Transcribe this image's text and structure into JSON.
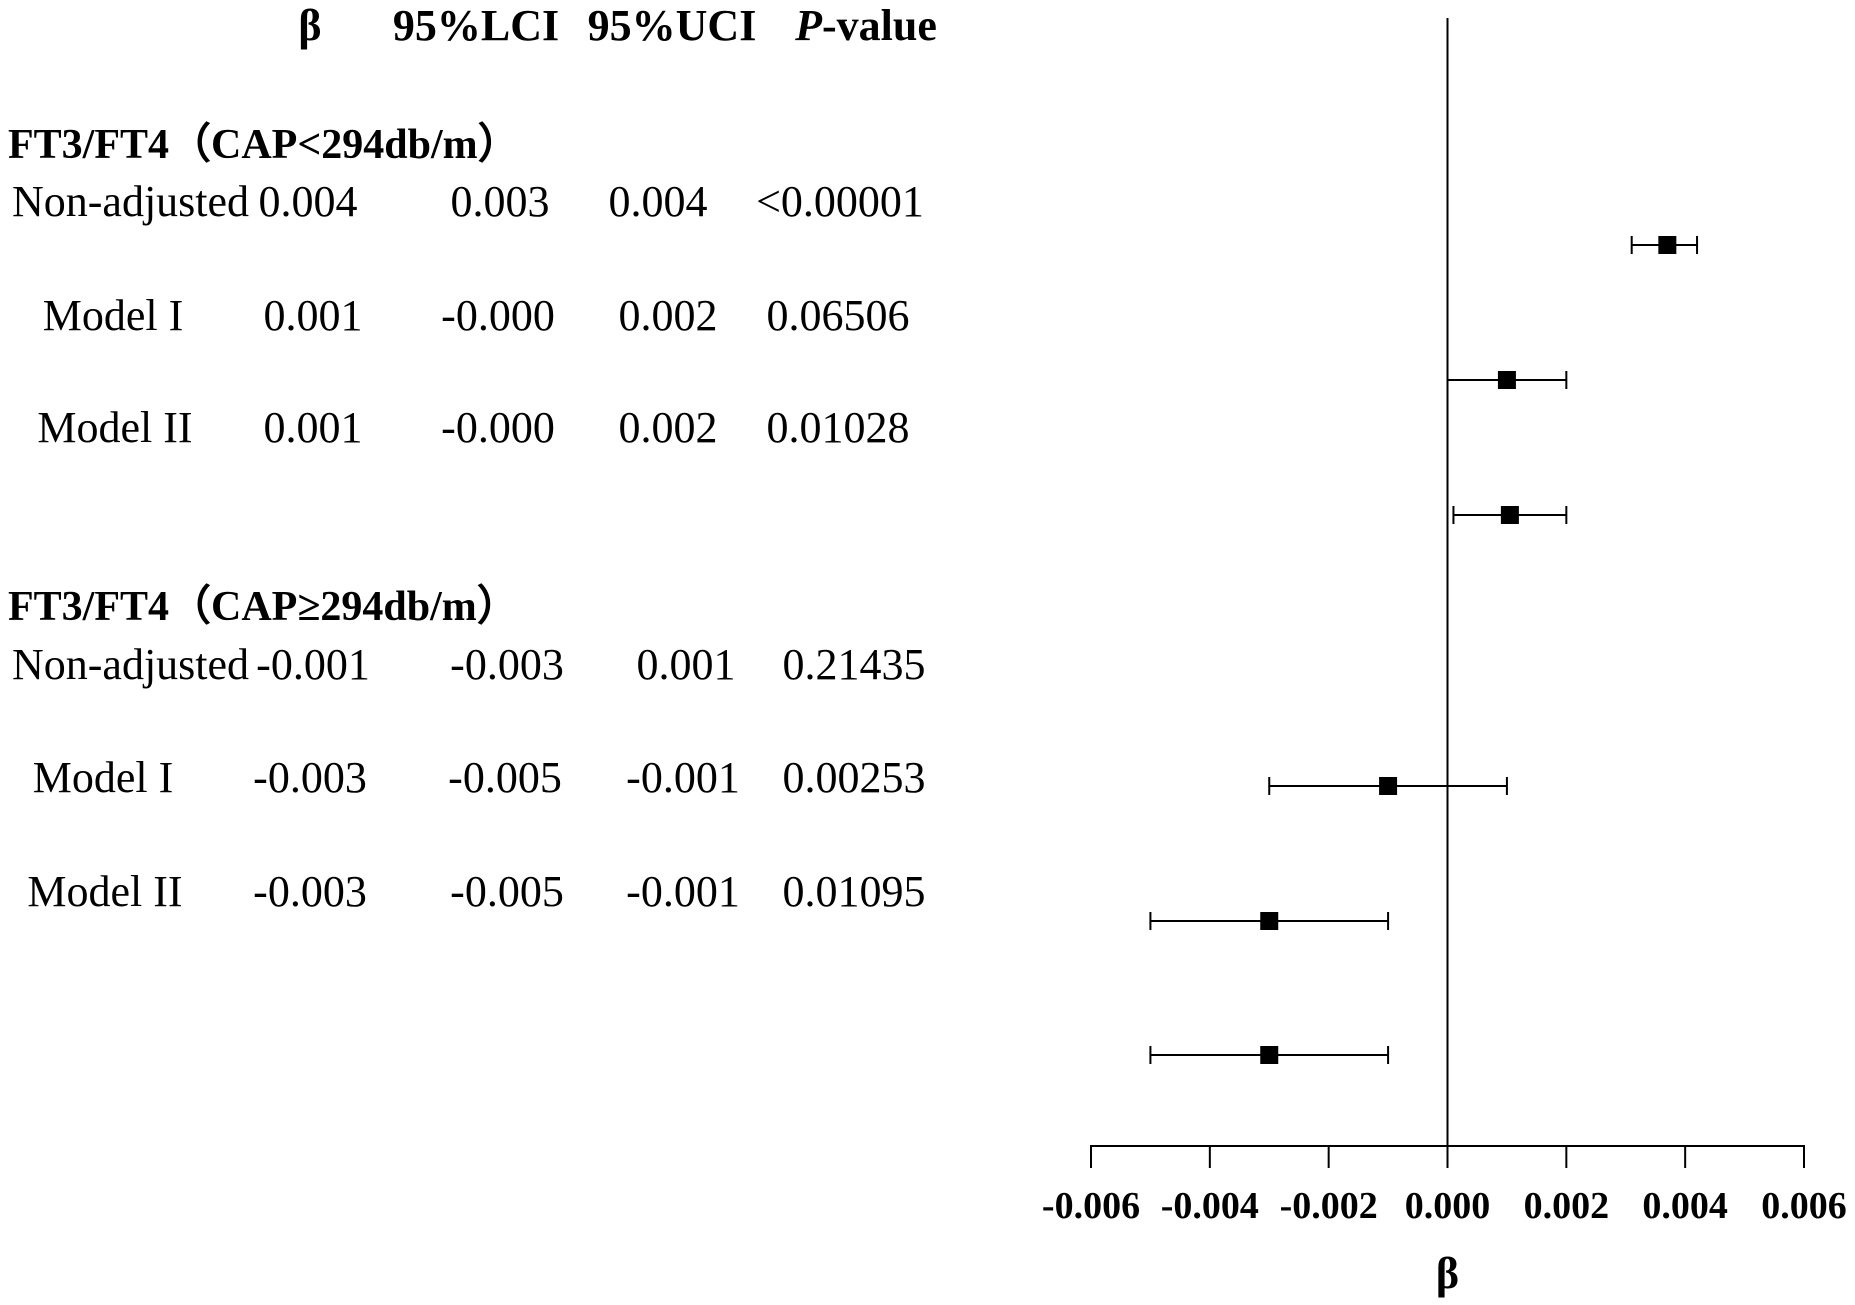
{
  "headers": {
    "beta": "β",
    "lci": "95%LCI",
    "uci": "95%UCI",
    "p_italic": "P",
    "p_rest": "-value"
  },
  "groups": [
    {
      "label": "FT3/FT4（CAP<294db/m）",
      "rows": [
        {
          "model": "Non-adjusted",
          "beta": "0.004",
          "lci": "0.003",
          "uci": "0.004",
          "p": "<0.00001"
        },
        {
          "model": "Model  I",
          "beta": "0.001",
          "lci": "-0.000",
          "uci": "0.002",
          "p": "0.06506"
        },
        {
          "model": "Model II",
          "beta": "0.001",
          "lci": "-0.000",
          "uci": "0.002",
          "p": "0.01028"
        }
      ]
    },
    {
      "label": "FT3/FT4（CAP≥294db/m）",
      "rows": [
        {
          "model": "Non-adjusted",
          "beta": "-0.001",
          "lci": "-0.003",
          "uci": "0.001",
          "p": "0.21435"
        },
        {
          "model": "Model  I",
          "beta": "-0.003",
          "lci": "-0.005",
          "uci": "-0.001",
          "p": "0.00253"
        },
        {
          "model": "Model II",
          "beta": "-0.003",
          "lci": "-0.005",
          "uci": "-0.001",
          "p": "0.01095"
        }
      ]
    }
  ],
  "chart_data": {
    "type": "scatter",
    "xlabel": "β",
    "xlim": [
      -0.006,
      0.006
    ],
    "x_ticks": [
      "-0.006",
      "-0.004",
      "-0.002",
      "0.000",
      "0.002",
      "0.004",
      "0.006"
    ],
    "reference_line": 0,
    "points": [
      {
        "label": "Non-adjusted",
        "estimate": 0.0037,
        "lower": 0.0031,
        "upper": 0.0042
      },
      {
        "label": "Model  I",
        "estimate": 0.001,
        "lower": 0.0,
        "upper": 0.002
      },
      {
        "label": "Model II",
        "estimate": 0.00105,
        "lower": 0.0001,
        "upper": 0.002
      },
      {
        "label": "Non-adjusted",
        "estimate": -0.001,
        "lower": -0.003,
        "upper": 0.001
      },
      {
        "label": "Model  I",
        "estimate": -0.003,
        "lower": -0.005,
        "upper": -0.001
      },
      {
        "label": "Model II",
        "estimate": -0.003,
        "lower": -0.005,
        "upper": -0.001
      }
    ]
  }
}
